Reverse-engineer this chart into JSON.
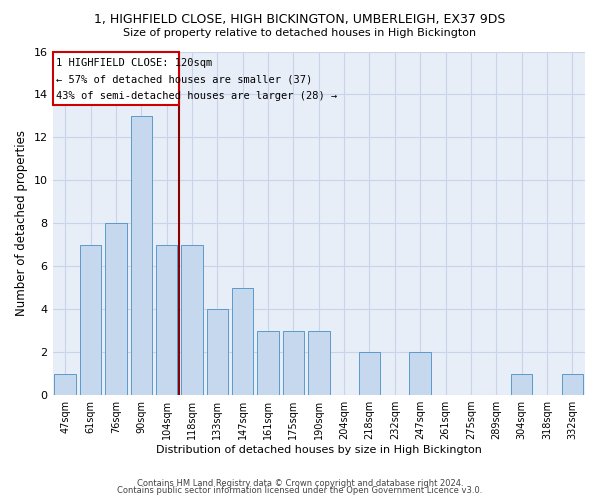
{
  "title": "1, HIGHFIELD CLOSE, HIGH BICKINGTON, UMBERLEIGH, EX37 9DS",
  "subtitle": "Size of property relative to detached houses in High Bickington",
  "xlabel": "Distribution of detached houses by size in High Bickington",
  "ylabel": "Number of detached properties",
  "bar_color": "#c5d8ed",
  "bar_edge_color": "#5b9aca",
  "grid_color": "#c8d4e8",
  "background_color": "#e8eef8",
  "categories": [
    "47sqm",
    "61sqm",
    "76sqm",
    "90sqm",
    "104sqm",
    "118sqm",
    "133sqm",
    "147sqm",
    "161sqm",
    "175sqm",
    "190sqm",
    "204sqm",
    "218sqm",
    "232sqm",
    "247sqm",
    "261sqm",
    "275sqm",
    "289sqm",
    "304sqm",
    "318sqm",
    "332sqm"
  ],
  "values": [
    1,
    7,
    8,
    13,
    7,
    7,
    4,
    5,
    3,
    3,
    3,
    0,
    2,
    0,
    2,
    0,
    0,
    0,
    1,
    0,
    1
  ],
  "ylim": [
    0,
    16
  ],
  "yticks": [
    0,
    2,
    4,
    6,
    8,
    10,
    12,
    14,
    16
  ],
  "property_label": "1 HIGHFIELD CLOSE: 120sqm",
  "annotation_line1": "← 57% of detached houses are smaller (37)",
  "annotation_line2": "43% of semi-detached houses are larger (28) →",
  "vline_x": 4.5,
  "footer_line1": "Contains HM Land Registry data © Crown copyright and database right 2024.",
  "footer_line2": "Contains public sector information licensed under the Open Government Licence v3.0."
}
